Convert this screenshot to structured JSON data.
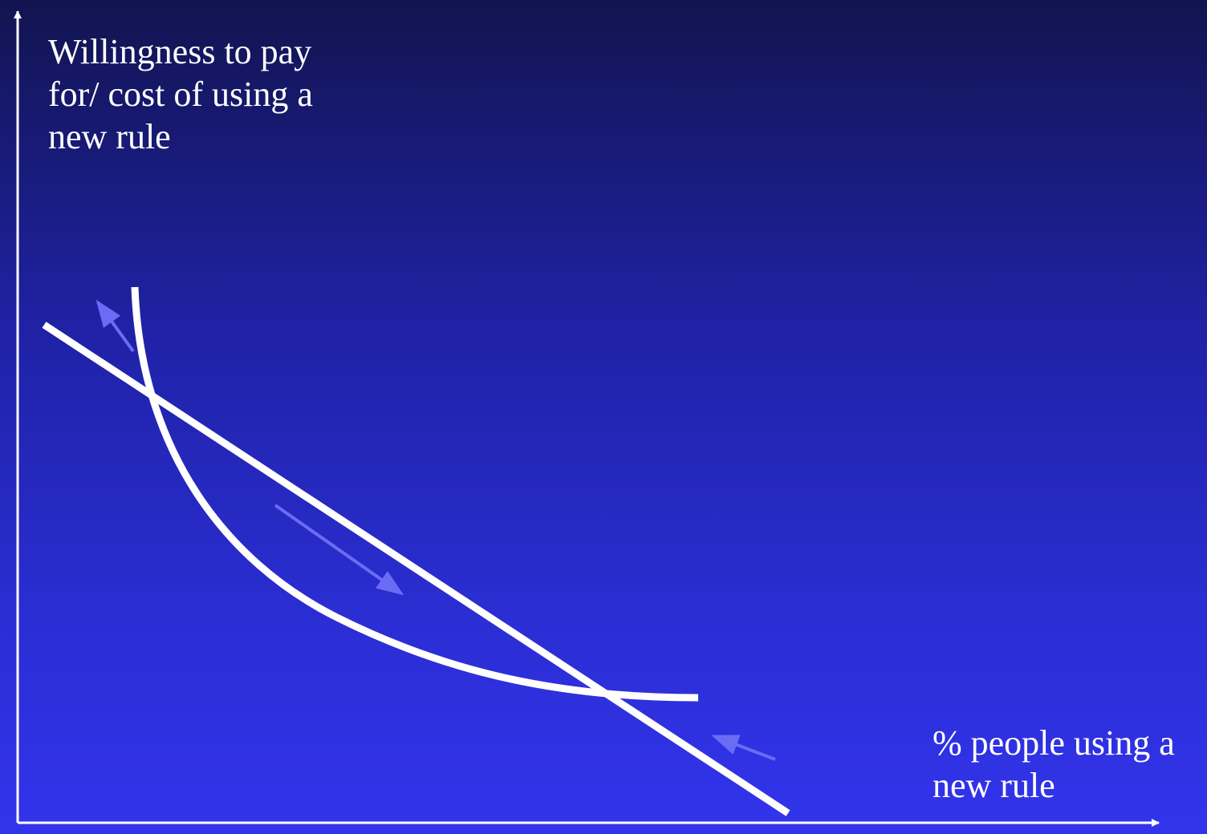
{
  "diagram": {
    "y_axis_label": [
      "Willingness to pay",
      "for/ cost of using a",
      "new rule"
    ],
    "x_axis_label": [
      "% people using a",
      "new rule"
    ],
    "colors": {
      "background_top": "#121450",
      "background_bottom": "#3234ec",
      "line": "#ffffff",
      "arrow": "#6b6cf5"
    }
  }
}
